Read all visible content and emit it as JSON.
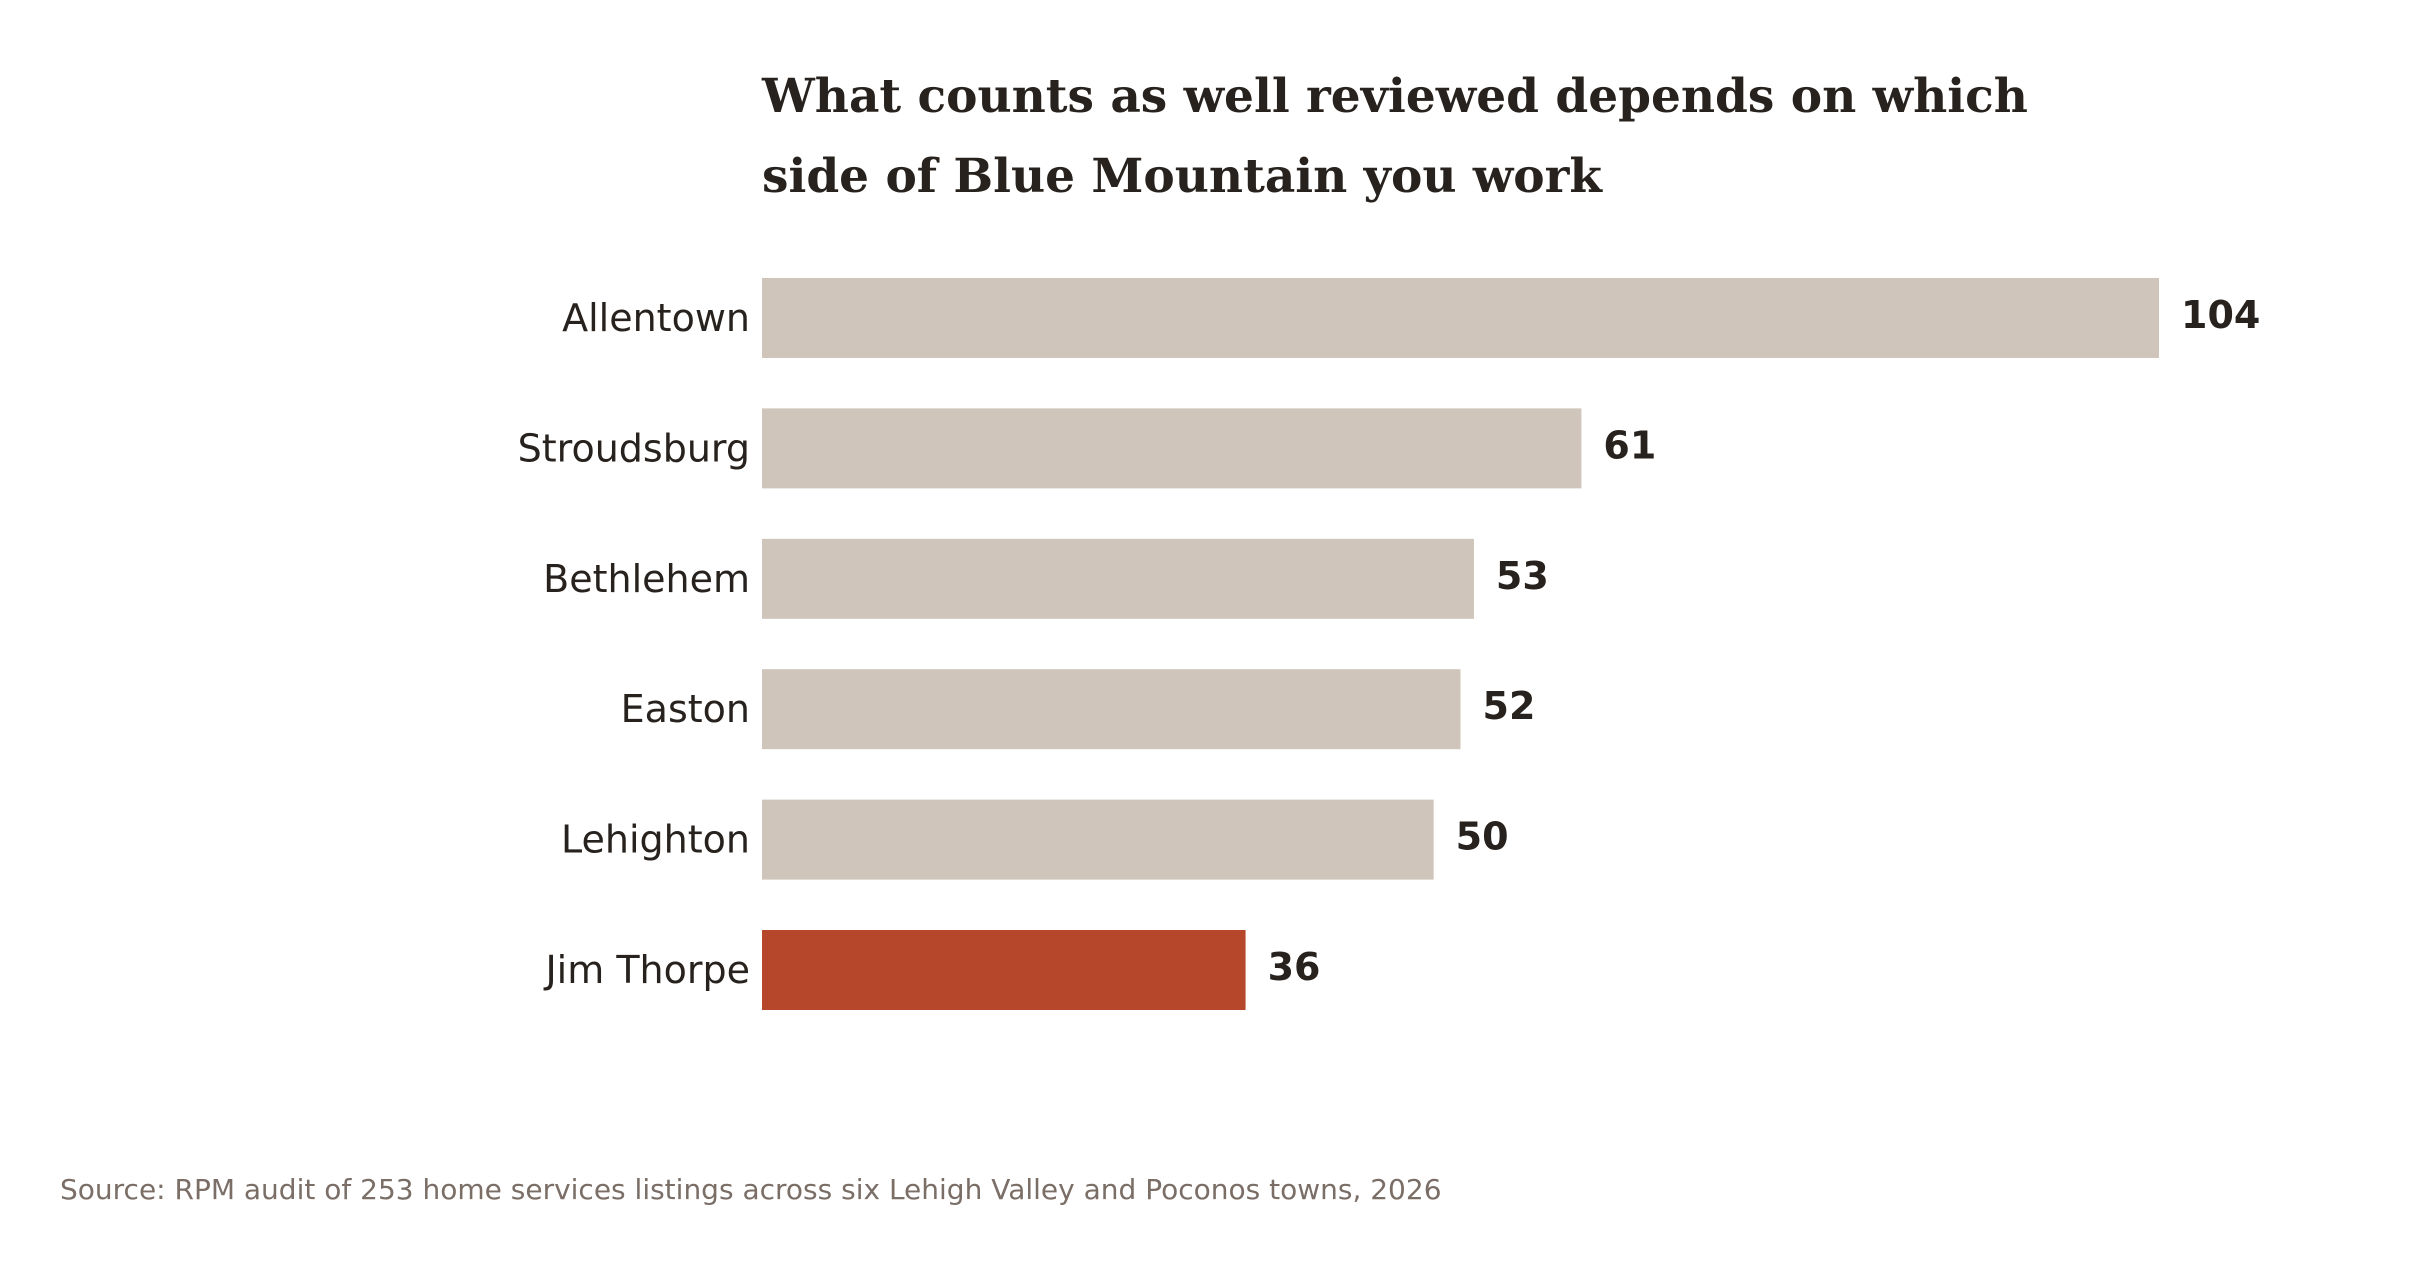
{
  "chart_data": {
    "type": "bar",
    "orientation": "horizontal",
    "title_lines": [
      "What counts as well reviewed depends on which",
      "side of Blue Mountain you work"
    ],
    "categories": [
      "Allentown",
      "Stroudsburg",
      "Bethlehem",
      "Easton",
      "Lehighton",
      "Jim Thorpe"
    ],
    "values": [
      104,
      61,
      53,
      52,
      50,
      36
    ],
    "highlight_category": "Jim Thorpe",
    "colors": {
      "bar": "#cfc5ba",
      "highlight": "#b7472a",
      "text": "#27221d",
      "source": "#7a6e66"
    },
    "xlim": [
      0,
      104
    ],
    "grid": false,
    "legend": "none",
    "source": "Source: RPM audit of 253 home services listings across six Lehigh Valley and Poconos towns, 2026"
  }
}
